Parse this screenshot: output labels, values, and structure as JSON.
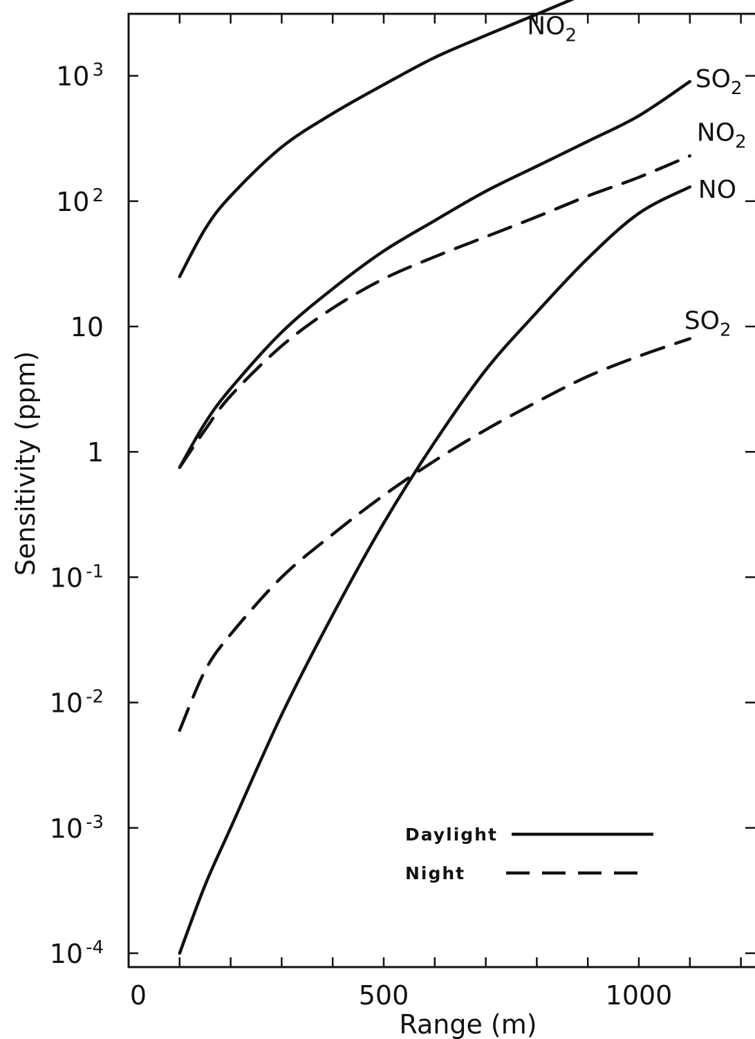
{
  "chart_data": {
    "type": "line",
    "title": "",
    "xlabel": "Range (m)",
    "ylabel": "Sensitivity (ppm)",
    "y_scale": "log",
    "xlim": [
      0,
      1200
    ],
    "ylim": [
      0.0001,
      5000
    ],
    "x_ticks": [
      0,
      500,
      1000
    ],
    "y_ticks": [
      {
        "value": 0.0001,
        "label": "10",
        "sup": "-4"
      },
      {
        "value": 0.001,
        "label": "10",
        "sup": "-3"
      },
      {
        "value": 0.01,
        "label": "10",
        "sup": "-2"
      },
      {
        "value": 0.1,
        "label": "10",
        "sup": "-1"
      },
      {
        "value": 1,
        "label": "1",
        "sup": ""
      },
      {
        "value": 10,
        "label": "10",
        "sup": ""
      },
      {
        "value": 100,
        "label": "10",
        "sup": "2"
      },
      {
        "value": 1000,
        "label": "10",
        "sup": "3"
      }
    ],
    "grid": false,
    "legend": {
      "placement": "bottom-right",
      "entries": [
        {
          "label": "Daylight",
          "style": "solid"
        },
        {
          "label": "Night",
          "style": "dashed"
        }
      ]
    },
    "series": [
      {
        "base": "NO",
        "sub": "2",
        "condition": "Daylight",
        "style": "solid",
        "x": [
          100,
          150,
          200,
          300,
          400,
          500,
          600,
          700,
          800,
          900
        ],
        "y": [
          25,
          60,
          110,
          270,
          500,
          850,
          1400,
          2100,
          3100,
          4600
        ]
      },
      {
        "base": "SO",
        "sub": "2",
        "condition": "Daylight",
        "style": "solid",
        "x": [
          100,
          150,
          200,
          300,
          400,
          500,
          600,
          700,
          800,
          900,
          1000,
          1100
        ],
        "y": [
          0.75,
          1.7,
          3.2,
          9,
          20,
          40,
          70,
          120,
          190,
          300,
          480,
          900
        ]
      },
      {
        "base": "NO",
        "sub": "2",
        "condition": "Night",
        "style": "dashed",
        "x": [
          100,
          150,
          200,
          300,
          400,
          500,
          600,
          700,
          800,
          900,
          1000,
          1100
        ],
        "y": [
          0.75,
          1.5,
          2.8,
          7,
          14,
          24,
          36,
          52,
          75,
          110,
          155,
          230
        ]
      },
      {
        "base": "NO",
        "sub": "",
        "condition": "Daylight",
        "style": "solid",
        "x": [
          100,
          150,
          200,
          300,
          400,
          500,
          600,
          700,
          800,
          900,
          1000,
          1100
        ],
        "y": [
          0.0001,
          0.00035,
          0.001,
          0.008,
          0.05,
          0.27,
          1.2,
          4.5,
          13,
          35,
          80,
          130
        ]
      },
      {
        "base": "SO",
        "sub": "2",
        "condition": "Night",
        "style": "dashed",
        "x": [
          100,
          150,
          200,
          300,
          400,
          500,
          600,
          700,
          800,
          900,
          1000,
          1100
        ],
        "y": [
          0.006,
          0.018,
          0.035,
          0.1,
          0.22,
          0.45,
          0.85,
          1.5,
          2.5,
          4,
          5.8,
          8
        ]
      }
    ]
  }
}
